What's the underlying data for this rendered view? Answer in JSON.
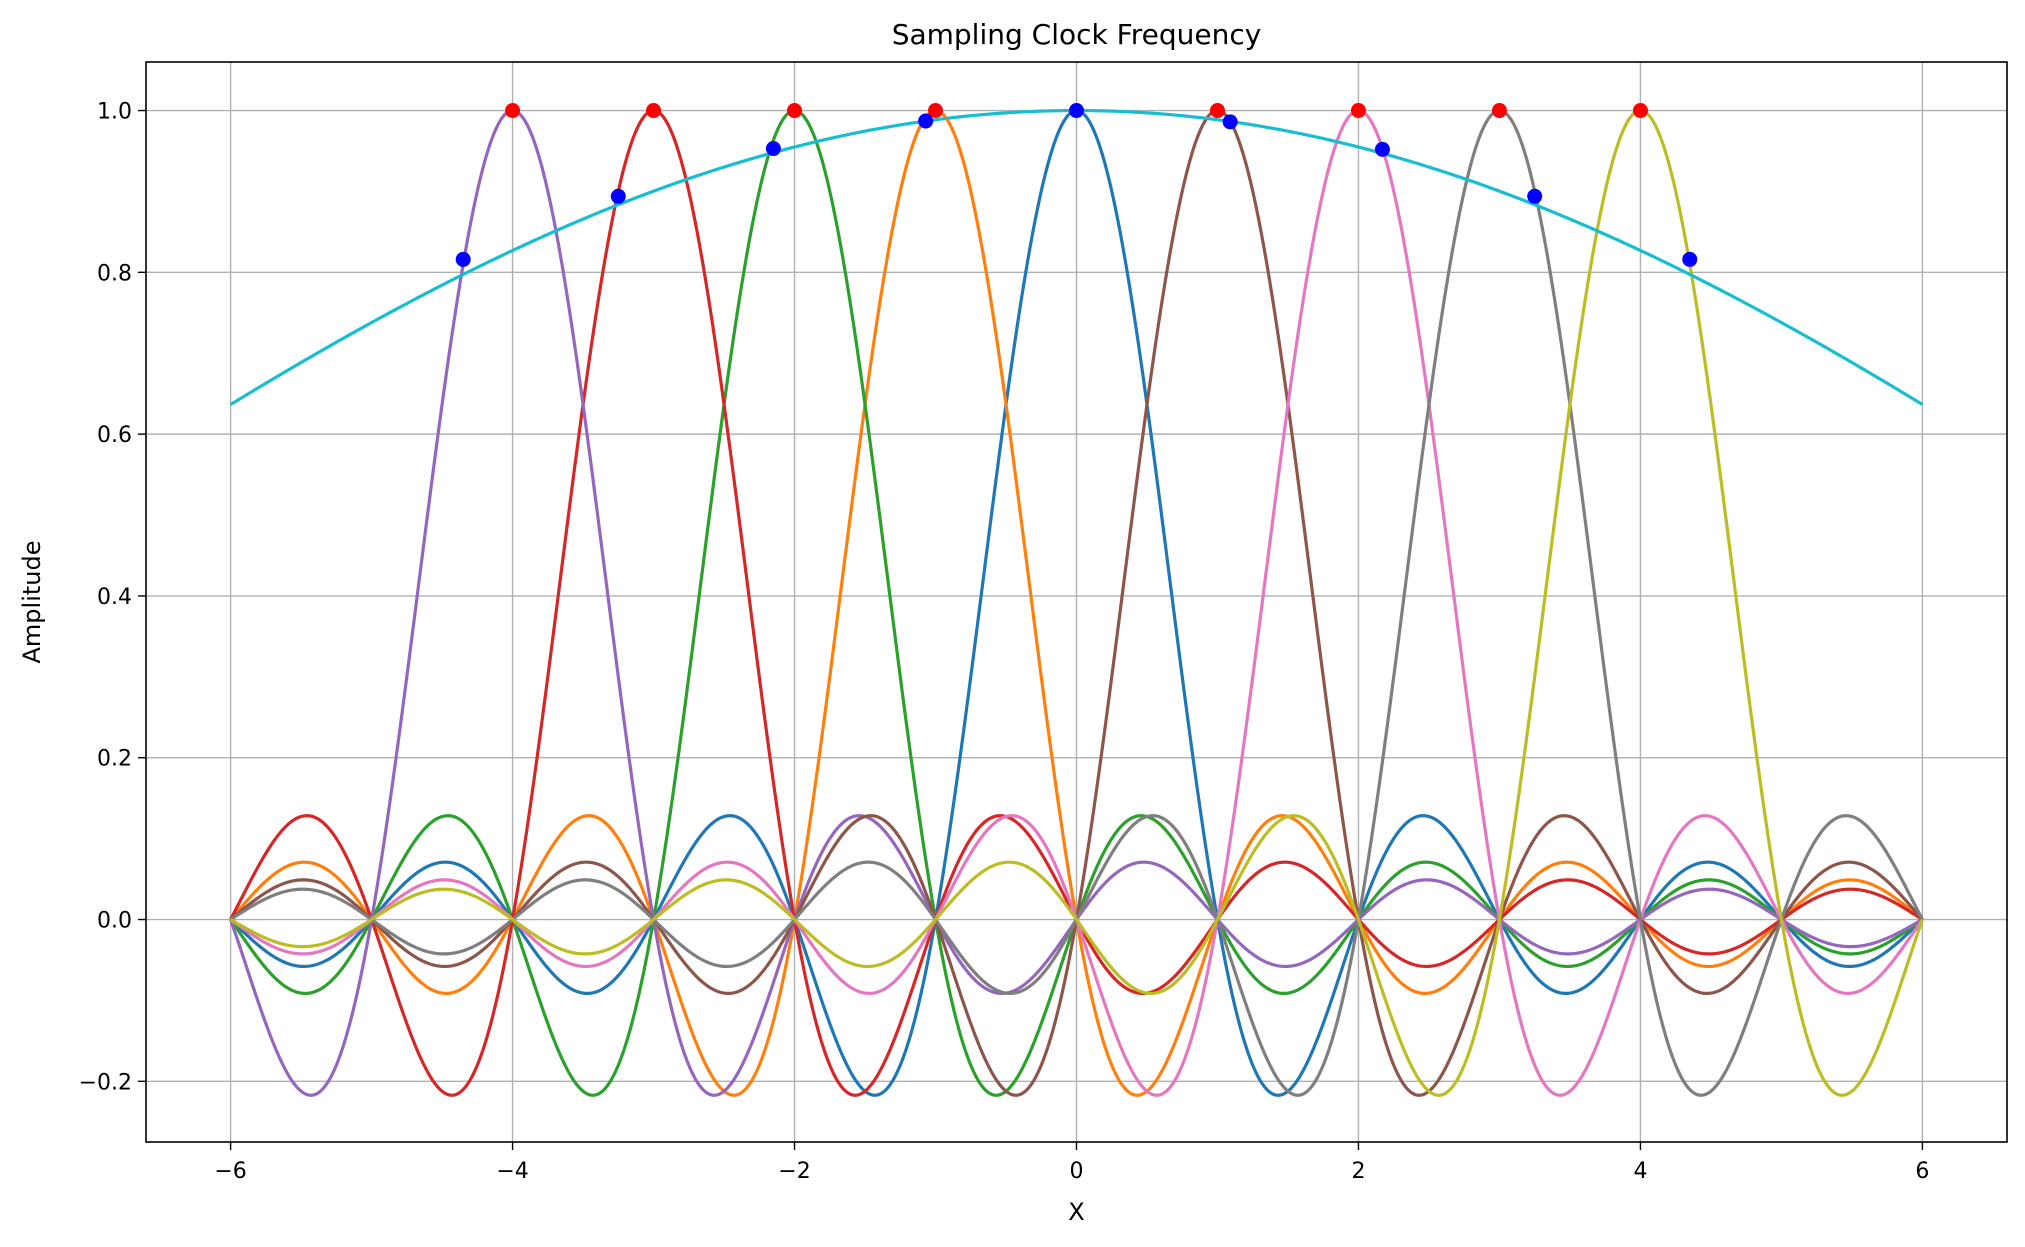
{
  "chart_data": {
    "type": "line",
    "title": "Sampling Clock Frequency",
    "xlabel": "X",
    "ylabel": "Amplitude",
    "xlim": [
      -6.6,
      6.6
    ],
    "ylim": [
      -0.275,
      1.06
    ],
    "xticks": [
      -6,
      -4,
      -2,
      0,
      2,
      4,
      6
    ],
    "xtick_labels": [
      "−6",
      "−4",
      "−2",
      "0",
      "2",
      "4",
      "6"
    ],
    "yticks": [
      -0.2,
      0.0,
      0.2,
      0.4,
      0.6,
      0.8,
      1.0
    ],
    "ytick_labels": [
      "−0.2",
      "0.0",
      "0.2",
      "0.4",
      "0.6",
      "0.8",
      "1.0"
    ],
    "grid": true,
    "x_range": [
      -6,
      6
    ],
    "series": [
      {
        "kind": "sinc",
        "center": 0,
        "color": "#1f77b4"
      },
      {
        "kind": "sinc",
        "center": -1,
        "color": "#ff7f0e"
      },
      {
        "kind": "sinc",
        "center": -2,
        "color": "#2ca02c"
      },
      {
        "kind": "sinc",
        "center": -3,
        "color": "#d62728"
      },
      {
        "kind": "sinc",
        "center": -4,
        "color": "#9467bd"
      },
      {
        "kind": "sinc",
        "center": 1,
        "color": "#8c564b"
      },
      {
        "kind": "sinc",
        "center": 2,
        "color": "#e377c2"
      },
      {
        "kind": "sinc",
        "center": 3,
        "color": "#7f7f7f"
      },
      {
        "kind": "sinc",
        "center": 4,
        "color": "#bcbd22"
      },
      {
        "kind": "envelope",
        "function": "sinc(x / 12)",
        "color": "#17becf"
      }
    ],
    "red_points": [
      {
        "x": -4,
        "y": 1.0
      },
      {
        "x": -3,
        "y": 1.0
      },
      {
        "x": -2,
        "y": 1.0
      },
      {
        "x": -1,
        "y": 1.0
      },
      {
        "x": 1,
        "y": 1.0
      },
      {
        "x": 2,
        "y": 1.0
      },
      {
        "x": 3,
        "y": 1.0
      },
      {
        "x": 4,
        "y": 1.0
      }
    ],
    "blue_points": [
      {
        "x": -4.35,
        "y": 0.816
      },
      {
        "x": -3.25,
        "y": 0.894
      },
      {
        "x": -2.15,
        "y": 0.953
      },
      {
        "x": -1.07,
        "y": 0.987
      },
      {
        "x": 0,
        "y": 1.0
      },
      {
        "x": 1.09,
        "y": 0.986
      },
      {
        "x": 2.17,
        "y": 0.952
      },
      {
        "x": 3.25,
        "y": 0.894
      },
      {
        "x": 4.35,
        "y": 0.816
      }
    ],
    "marker_colors": {
      "red": "#ff0000",
      "blue": "#0000ff"
    }
  }
}
